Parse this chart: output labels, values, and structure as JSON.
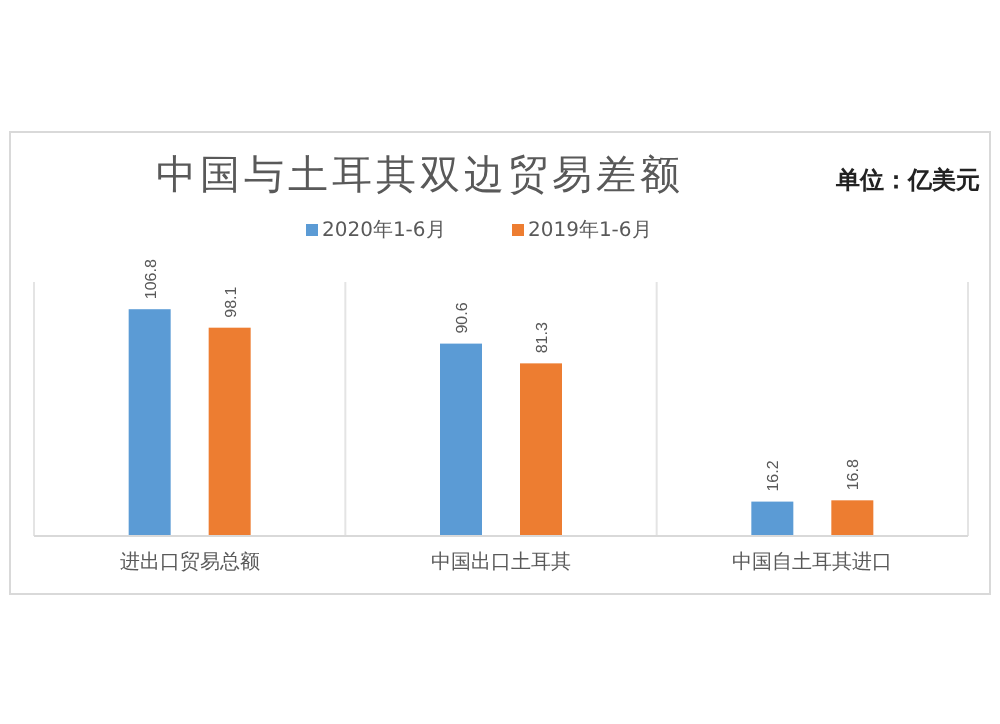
{
  "chart_data": {
    "type": "bar",
    "title": "中国与土耳其双边贸易差额",
    "subtitle": "单位：亿美元",
    "categories": [
      "进出口贸易总额",
      "中国出口土耳其",
      "中国自土耳其进口"
    ],
    "series": [
      {
        "name": "2020年1-6月",
        "color": "#5b9bd5",
        "values": [
          106.8,
          90.6,
          16.2
        ]
      },
      {
        "name": "2019年1-6月",
        "color": "#ed7d31",
        "values": [
          98.1,
          81.3,
          16.8
        ]
      }
    ],
    "data_labels": true,
    "legend": "top"
  }
}
